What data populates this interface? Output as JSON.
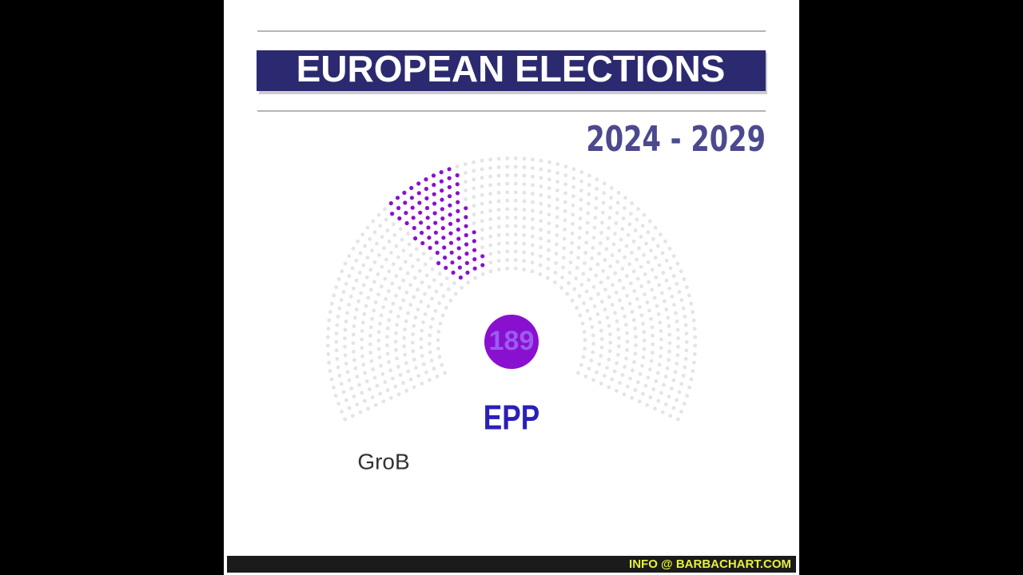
{
  "chart_data": {
    "type": "parliament",
    "title": "EUROPEAN ELECTIONS",
    "subtitle": "2024 - 2029",
    "label": "EPP",
    "value": 189,
    "color": "#8a10d0",
    "annotation": "GroB",
    "footer": "INFO @ BARBACHART.COM"
  }
}
